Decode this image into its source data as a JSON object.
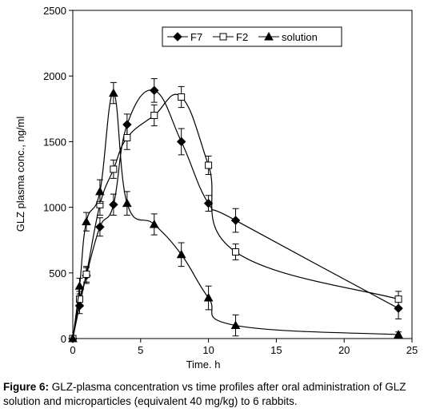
{
  "chart_data": {
    "type": "line",
    "xlabel": "Time. h",
    "ylabel": "GLZ plasma conc., ng/ml",
    "x": [
      0,
      0.5,
      1,
      2,
      3,
      4,
      6,
      8,
      10,
      12,
      24
    ],
    "series": [
      {
        "name": "F7",
        "color": "#000000",
        "marker": "diamond",
        "values": [
          0,
          250,
          480,
          850,
          1020,
          1630,
          1890,
          1500,
          1030,
          900,
          230
        ],
        "errors": [
          0,
          60,
          60,
          70,
          80,
          80,
          90,
          100,
          60,
          90,
          80
        ]
      },
      {
        "name": "F2",
        "color": "#000000",
        "marker": "square",
        "values": [
          0,
          300,
          490,
          1020,
          1290,
          1530,
          1700,
          1840,
          1320,
          660,
          300
        ],
        "errors": [
          0,
          60,
          60,
          80,
          70,
          90,
          80,
          80,
          70,
          60,
          60
        ]
      },
      {
        "name": "solution",
        "color": "#000000",
        "marker": "triangle",
        "values": [
          0,
          400,
          890,
          1120,
          1870,
          1030,
          870,
          640,
          310,
          100,
          30
        ],
        "errors": [
          0,
          60,
          70,
          90,
          80,
          90,
          80,
          90,
          90,
          80,
          20
        ]
      }
    ],
    "xlim": [
      0,
      25
    ],
    "xticks": [
      0,
      5,
      10,
      15,
      20,
      25
    ],
    "ylim": [
      0,
      2500
    ],
    "yticks": [
      0,
      500,
      1000,
      1500,
      2000,
      2500
    ],
    "grid": false,
    "legend": "top"
  },
  "caption": {
    "label": "Figure 6:",
    "text": "GLZ-plasma concentration vs time profiles after oral administration of GLZ solution and microparticles (equivalent 40 mg/kg) to 6 rabbits."
  }
}
